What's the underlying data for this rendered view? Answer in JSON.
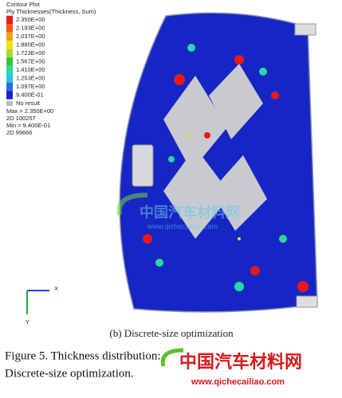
{
  "plot": {
    "title": "Contour Plot",
    "subtitle": "Ply Thicknesses(Thickness, Sum)",
    "legend": [
      "2.350E+00",
      "2.193E+00",
      "2.037E+00",
      "1.880E+00",
      "1.723E+00",
      "1.567E+00",
      "1.410E+00",
      "1.253E+00",
      "1.097E+00",
      "9.400E-01"
    ],
    "legend_colors": [
      "#e8181a",
      "#f05a12",
      "#f3a01a",
      "#e9e31c",
      "#a6dc2a",
      "#35c437",
      "#2ad8a0",
      "#22c7e3",
      "#2a6be8",
      "#1a22c8"
    ],
    "no_result": "No result",
    "stats": [
      "Max = 2.350E+00",
      "2D 100257",
      "Min = 9.400E-01",
      "2D 99666"
    ],
    "axes": [
      "X",
      "Y"
    ]
  },
  "caption": {
    "sub": "(b) Discrete-size optimization",
    "line1": "Figure 5. Thickness distribution:",
    "line2": "Discrete-size optimization."
  },
  "watermark": {
    "name": "中国汽车材料网",
    "url": "www.qichecailiao.com"
  }
}
